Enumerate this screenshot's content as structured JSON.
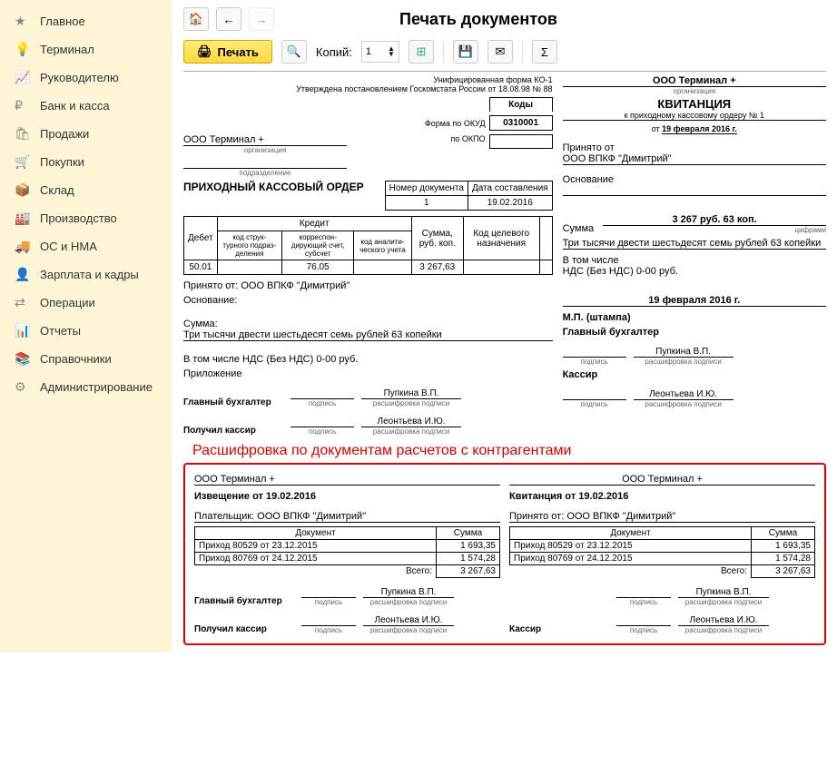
{
  "sidebar": {
    "items": [
      {
        "icon": "★",
        "label": "Главное"
      },
      {
        "icon": "💡",
        "label": "Терминал",
        "iconColor": "#f0b000"
      },
      {
        "icon": "📈",
        "label": "Руководителю"
      },
      {
        "icon": "₽",
        "label": "Банк и касса"
      },
      {
        "icon": "🛍",
        "label": "Продажи"
      },
      {
        "icon": "🛒",
        "label": "Покупки"
      },
      {
        "icon": "📦",
        "label": "Склад"
      },
      {
        "icon": "🏭",
        "label": "Производство"
      },
      {
        "icon": "🚚",
        "label": "ОС и НМА"
      },
      {
        "icon": "👤",
        "label": "Зарплата и кадры"
      },
      {
        "icon": "⇄",
        "label": "Операции"
      },
      {
        "icon": "📊",
        "label": "Отчеты"
      },
      {
        "icon": "📚",
        "label": "Справочники"
      },
      {
        "icon": "⚙",
        "label": "Администрирование"
      }
    ]
  },
  "header": {
    "title": "Печать документов",
    "printLabel": "Печать",
    "copiesLabel": "Копий:",
    "copiesValue": "1"
  },
  "docLeft": {
    "formTop1": "Унифицированная форма КО-1",
    "formTop2": "Утверждена постановлением Госкомстата России от 18.08.98 № 88",
    "org": "ООО Терминал +",
    "orgCap": "организация",
    "subdivCap": "подразделение",
    "docTitle": "ПРИХОДНЫЙ КАССОВЫЙ ОРДЕР",
    "codesLabel": "Коды",
    "okudLabel": "Форма по ОКУД",
    "okudVal": "0310001",
    "okpoLabel": "по ОКПО",
    "docNumHdr": "Номер документа",
    "docDateHdr": "Дата составления",
    "docNum": "1",
    "docDate": "19.02.2016",
    "tbl": {
      "debitHdr": "Дебет",
      "creditHdr": "Кредит",
      "c1": "код струк-турного подраз-деления",
      "c2": "корреспон-дирующий счет, субсчет",
      "c3": "код аналити-ческого учета",
      "sumHdr": "Сумма, руб. коп.",
      "codeHdr": "Код целевого назначения",
      "debitVal": "50.01",
      "creditVal": "76.05",
      "sumVal": "3 267,63"
    },
    "acceptedFrom": "Принято от:",
    "acceptedFromVal": "ООО ВПКФ \"Димитрий\"",
    "basis": "Основание:",
    "sum": "Сумма:",
    "sumWords": "Три тысячи двести шестьдесят семь рублей 63 копейки",
    "vatLine": "В том числе НДС (Без НДС) 0-00 руб.",
    "attach": "Приложение",
    "chiefAcc": "Главный бухгалтер",
    "chiefName": "Пупкина В.П.",
    "cashier": "Получил кассир",
    "cashierName": "Леонтьева И.Ю.",
    "sigCap": "подпись",
    "nameCap": "расшифровка подписи"
  },
  "docRight": {
    "org": "ООО Терминал +",
    "orgCap": "организация",
    "receiptTitle": "КВИТАНЦИЯ",
    "receiptSub": "к приходному кассовому ордеру № 1",
    "dateFrom": "от ",
    "date": "19 февраля 2016 г.",
    "acceptedFrom": "Принято от",
    "acceptedFromVal": "ООО ВПКФ \"Димитрий\"",
    "basis": "Основание",
    "sumLabel": "Сумма",
    "sumVal": "3 267 руб. 63 коп.",
    "sumCap": "цифрами",
    "sumWords": "Три тысячи двести шестьдесят семь рублей 63 копейки",
    "incl": "В том числе",
    "vat": "НДС (Без НДС) 0-00 руб.",
    "date2": "19 февраля 2016 г.",
    "stamp": "М.П. (штампа)",
    "chiefAcc": "Главный бухгалтер",
    "chiefName": "Пупкина В.П.",
    "cashier": "Кассир",
    "cashierName": "Леонтьева И.Ю.",
    "sigCap": "подпись",
    "nameCap": "расшифровка подписи"
  },
  "callout": "Расшифровка по документам расчетов с контрагентами",
  "detail": {
    "left": {
      "org": "ООО Терминал +",
      "title": "Извещение от 19.02.2016",
      "payer": "Плательщик: ООО ВПКФ \"Димитрий\"",
      "colDoc": "Документ",
      "colSum": "Сумма",
      "rows": [
        {
          "d": "Приход 80529 от 23.12.2015",
          "s": "1 693,35"
        },
        {
          "d": "Приход 80769 от 24.12.2015",
          "s": "1 574,28"
        }
      ],
      "total": "Всего:",
      "totalSum": "3 267,63",
      "chiefAcc": "Главный бухгалтер",
      "chiefName": "Пупкина В.П.",
      "cashier": "Получил кассир",
      "cashierName": "Леонтьева И.Ю."
    },
    "right": {
      "org": "ООО Терминал +",
      "title": "Квитанция от 19.02.2016",
      "payer": "Принято от: ООО ВПКФ \"Димитрий\"",
      "colDoc": "Документ",
      "colSum": "Сумма",
      "rows": [
        {
          "d": "Приход 80529 от 23.12.2015",
          "s": "1 693,35"
        },
        {
          "d": "Приход 80769 от 24.12.2015",
          "s": "1 574,28"
        }
      ],
      "total": "Всего:",
      "totalSum": "3 267,63",
      "chiefAcc": "",
      "chiefName": "Пупкина В.П.",
      "cashier": "Кассир",
      "cashierName": "Леонтьева И.Ю."
    }
  },
  "captions": {
    "sig": "подпись",
    "name": "расшифровка подписи"
  }
}
